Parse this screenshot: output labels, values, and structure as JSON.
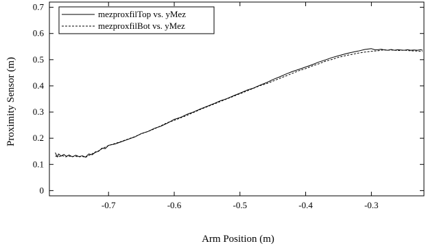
{
  "chart_data": {
    "type": "line",
    "xlabel": "Arm Position (m)",
    "ylabel": "Proximity Sensor (m)",
    "xlim": [
      -0.79,
      -0.22
    ],
    "ylim": [
      -0.02,
      0.72
    ],
    "xticks": [
      -0.7,
      -0.6,
      -0.5,
      -0.4,
      -0.3
    ],
    "xtick_labels": [
      "-0.7",
      "-0.6",
      "-0.5",
      "-0.4",
      "-0.3"
    ],
    "yticks": [
      0,
      0.1,
      0.2,
      0.3,
      0.4,
      0.5,
      0.6,
      0.7
    ],
    "ytick_labels": [
      "0",
      "0.1",
      "0.2",
      "0.3",
      "0.4",
      "0.5",
      "0.6",
      "0.7"
    ],
    "grid": false,
    "legend_position": "top-left",
    "series": [
      {
        "name": "mezproxfilTop vs. yMez",
        "style": "solid",
        "color": "#000000",
        "x": [
          -0.781,
          -0.778,
          -0.776,
          -0.772,
          -0.768,
          -0.764,
          -0.76,
          -0.755,
          -0.75,
          -0.745,
          -0.74,
          -0.735,
          -0.73,
          -0.725,
          -0.72,
          -0.715,
          -0.71,
          -0.705,
          -0.7,
          -0.69,
          -0.68,
          -0.67,
          -0.66,
          -0.65,
          -0.64,
          -0.63,
          -0.62,
          -0.61,
          -0.6,
          -0.59,
          -0.58,
          -0.57,
          -0.56,
          -0.55,
          -0.54,
          -0.53,
          -0.52,
          -0.51,
          -0.5,
          -0.49,
          -0.48,
          -0.47,
          -0.46,
          -0.45,
          -0.44,
          -0.43,
          -0.42,
          -0.41,
          -0.4,
          -0.39,
          -0.38,
          -0.37,
          -0.36,
          -0.35,
          -0.34,
          -0.33,
          -0.32,
          -0.31,
          -0.3,
          -0.295,
          -0.29,
          -0.285,
          -0.28,
          -0.275,
          -0.27,
          -0.265,
          -0.26,
          -0.255,
          -0.25,
          -0.245,
          -0.24,
          -0.235,
          -0.23,
          -0.225,
          -0.222
        ],
        "y": [
          0.145,
          0.128,
          0.14,
          0.132,
          0.138,
          0.131,
          0.136,
          0.129,
          0.135,
          0.13,
          0.133,
          0.128,
          0.14,
          0.137,
          0.146,
          0.15,
          0.162,
          0.16,
          0.173,
          0.178,
          0.187,
          0.196,
          0.205,
          0.218,
          0.226,
          0.238,
          0.246,
          0.258,
          0.272,
          0.28,
          0.292,
          0.301,
          0.312,
          0.322,
          0.332,
          0.343,
          0.351,
          0.362,
          0.372,
          0.383,
          0.391,
          0.402,
          0.412,
          0.424,
          0.434,
          0.445,
          0.455,
          0.463,
          0.472,
          0.481,
          0.491,
          0.499,
          0.508,
          0.515,
          0.522,
          0.528,
          0.533,
          0.539,
          0.542,
          0.538,
          0.538,
          0.54,
          0.537,
          0.536,
          0.539,
          0.536,
          0.538,
          0.537,
          0.536,
          0.538,
          0.536,
          0.537,
          0.536,
          0.538,
          0.536
        ]
      },
      {
        "name": "mezproxfilBot vs. yMez",
        "style": "dashed",
        "color": "#000000",
        "x": [
          -0.781,
          -0.775,
          -0.77,
          -0.765,
          -0.76,
          -0.755,
          -0.75,
          -0.745,
          -0.74,
          -0.735,
          -0.73,
          -0.725,
          -0.72,
          -0.715,
          -0.71,
          -0.705,
          -0.7,
          -0.69,
          -0.68,
          -0.67,
          -0.66,
          -0.65,
          -0.64,
          -0.63,
          -0.62,
          -0.61,
          -0.6,
          -0.59,
          -0.58,
          -0.57,
          -0.56,
          -0.55,
          -0.54,
          -0.53,
          -0.52,
          -0.51,
          -0.5,
          -0.49,
          -0.48,
          -0.47,
          -0.46,
          -0.45,
          -0.44,
          -0.43,
          -0.42,
          -0.41,
          -0.4,
          -0.39,
          -0.38,
          -0.37,
          -0.36,
          -0.35,
          -0.34,
          -0.33,
          -0.32,
          -0.31,
          -0.3,
          -0.29,
          -0.285,
          -0.28,
          -0.275,
          -0.27,
          -0.26,
          -0.25,
          -0.24,
          -0.23,
          -0.222
        ],
        "y": [
          0.132,
          0.13,
          0.133,
          0.129,
          0.132,
          0.13,
          0.131,
          0.129,
          0.131,
          0.127,
          0.134,
          0.14,
          0.148,
          0.152,
          0.16,
          0.166,
          0.172,
          0.18,
          0.188,
          0.197,
          0.206,
          0.217,
          0.226,
          0.236,
          0.248,
          0.26,
          0.268,
          0.278,
          0.288,
          0.299,
          0.31,
          0.32,
          0.33,
          0.34,
          0.35,
          0.36,
          0.37,
          0.38,
          0.39,
          0.4,
          0.408,
          0.418,
          0.428,
          0.438,
          0.448,
          0.458,
          0.466,
          0.476,
          0.484,
          0.494,
          0.501,
          0.509,
          0.515,
          0.52,
          0.525,
          0.529,
          0.532,
          0.534,
          0.536,
          0.538,
          0.536,
          0.537,
          0.535,
          0.536,
          0.534,
          0.533,
          0.531
        ]
      }
    ]
  }
}
